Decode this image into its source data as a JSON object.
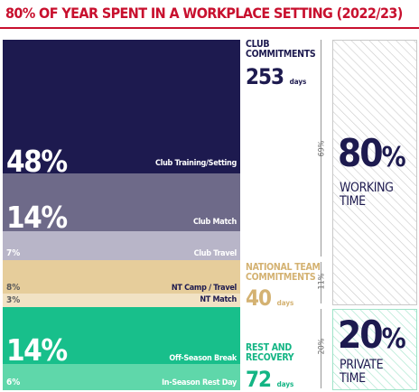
{
  "title": "80% OF YEAR SPENT IN A WORKPLACE SETTING (2022/23)",
  "colors": {
    "title": "#c8102e",
    "club_training": "#1d1a4f",
    "club_match": "#6e6a89",
    "club_travel": "#b8b5c8",
    "nt_camp": "#e6cd9b",
    "nt_match": "#f1e2c4",
    "offseason": "#18bf8b",
    "inseason": "#5fd7aa",
    "nt_text": "#d4b272",
    "rest_text": "#13b584"
  },
  "chart_data": {
    "type": "bar",
    "orientation": "stacked-horizontal-bands",
    "unit": "% of year",
    "categories": [
      "Club Training/Setting",
      "Club Match",
      "Club Travel",
      "NT Camp / Travel",
      "NT Match",
      "Off-Season Break",
      "In-Season Rest Day"
    ],
    "values": [
      48,
      14,
      7,
      8,
      3,
      14,
      6
    ],
    "labels": [
      "48%",
      "14%",
      "7%",
      "8%",
      "3%",
      "14%",
      "6%"
    ],
    "groups": [
      {
        "name": "CLUB COMMITMENTS",
        "days": "253",
        "unit": "days",
        "share": "69%"
      },
      {
        "name": "NATIONAL TEAM COMMITMENTS",
        "days": "40",
        "unit": "days",
        "share": "11%"
      },
      {
        "name": "REST AND RECOVERY",
        "days": "72",
        "unit": "days",
        "share": "20%"
      }
    ],
    "totals": [
      {
        "value": "80",
        "pct": "%",
        "label": "WORKING TIME",
        "label_lines": [
          "WORKING",
          "TIME"
        ]
      },
      {
        "value": "20",
        "pct": "%",
        "label": "PRIVATE TIME",
        "label_lines": [
          "PRIVATE",
          "TIME"
        ]
      }
    ]
  }
}
